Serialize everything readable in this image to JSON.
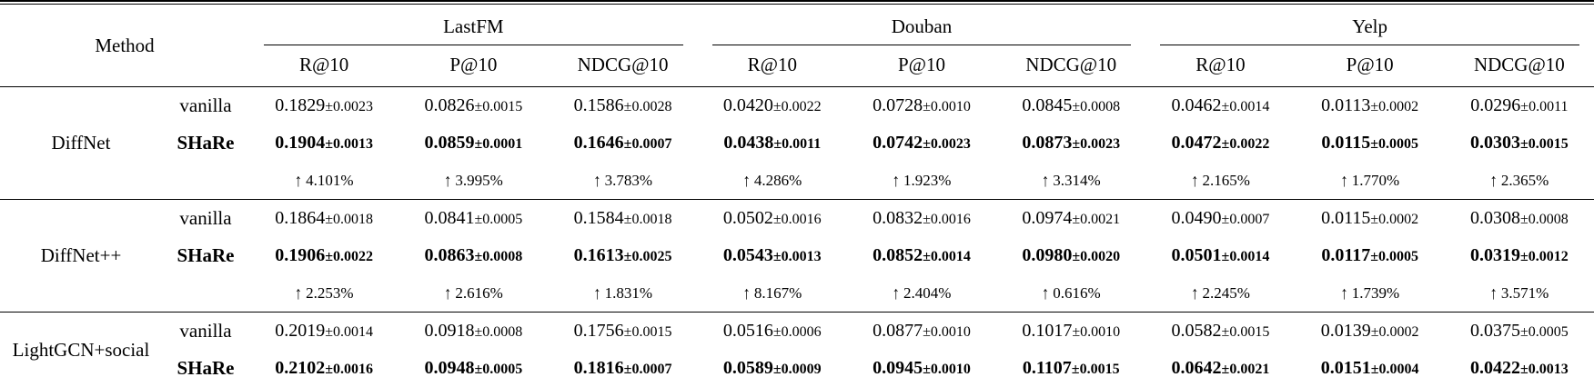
{
  "colors": {
    "text": "#000000",
    "background": "#ffffff"
  },
  "table": {
    "method_header": "Method",
    "datasets": [
      "LastFM",
      "Douban",
      "Yelp"
    ],
    "metrics": [
      "R@10",
      "P@10",
      "NDCG@10"
    ],
    "variant_labels": {
      "vanilla": "vanilla",
      "share": "SHaRe"
    },
    "pm_sign": "±",
    "improve_arrow": "↑",
    "methods": [
      {
        "name": "DiffNet",
        "vanilla": [
          [
            "0.1829",
            "0.0023"
          ],
          [
            "0.0826",
            "0.0015"
          ],
          [
            "0.1586",
            "0.0028"
          ],
          [
            "0.0420",
            "0.0022"
          ],
          [
            "0.0728",
            "0.0010"
          ],
          [
            "0.0845",
            "0.0008"
          ],
          [
            "0.0462",
            "0.0014"
          ],
          [
            "0.0113",
            "0.0002"
          ],
          [
            "0.0296",
            "0.0011"
          ]
        ],
        "share": [
          [
            "0.1904",
            "0.0013"
          ],
          [
            "0.0859",
            "0.0001"
          ],
          [
            "0.1646",
            "0.0007"
          ],
          [
            "0.0438",
            "0.0011"
          ],
          [
            "0.0742",
            "0.0023"
          ],
          [
            "0.0873",
            "0.0023"
          ],
          [
            "0.0472",
            "0.0022"
          ],
          [
            "0.0115",
            "0.0005"
          ],
          [
            "0.0303",
            "0.0015"
          ]
        ],
        "improve": [
          "4.101%",
          "3.995%",
          "3.783%",
          "4.286%",
          "1.923%",
          "3.314%",
          "2.165%",
          "1.770%",
          "2.365%"
        ]
      },
      {
        "name": "DiffNet++",
        "vanilla": [
          [
            "0.1864",
            "0.0018"
          ],
          [
            "0.0841",
            "0.0005"
          ],
          [
            "0.1584",
            "0.0018"
          ],
          [
            "0.0502",
            "0.0016"
          ],
          [
            "0.0832",
            "0.0016"
          ],
          [
            "0.0974",
            "0.0021"
          ],
          [
            "0.0490",
            "0.0007"
          ],
          [
            "0.0115",
            "0.0002"
          ],
          [
            "0.0308",
            "0.0008"
          ]
        ],
        "share": [
          [
            "0.1906",
            "0.0022"
          ],
          [
            "0.0863",
            "0.0008"
          ],
          [
            "0.1613",
            "0.0025"
          ],
          [
            "0.0543",
            "0.0013"
          ],
          [
            "0.0852",
            "0.0014"
          ],
          [
            "0.0980",
            "0.0020"
          ],
          [
            "0.0501",
            "0.0014"
          ],
          [
            "0.0117",
            "0.0005"
          ],
          [
            "0.0319",
            "0.0012"
          ]
        ],
        "improve": [
          "2.253%",
          "2.616%",
          "1.831%",
          "8.167%",
          "2.404%",
          "0.616%",
          "2.245%",
          "1.739%",
          "3.571%"
        ]
      },
      {
        "name": "LightGCN+social",
        "vanilla": [
          [
            "0.2019",
            "0.0014"
          ],
          [
            "0.0918",
            "0.0008"
          ],
          [
            "0.1756",
            "0.0015"
          ],
          [
            "0.0516",
            "0.0006"
          ],
          [
            "0.0877",
            "0.0010"
          ],
          [
            "0.1017",
            "0.0010"
          ],
          [
            "0.0582",
            "0.0015"
          ],
          [
            "0.0139",
            "0.0002"
          ],
          [
            "0.0375",
            "0.0005"
          ]
        ],
        "share": [
          [
            "0.2102",
            "0.0016"
          ],
          [
            "0.0948",
            "0.0005"
          ],
          [
            "0.1816",
            "0.0007"
          ],
          [
            "0.0589",
            "0.0009"
          ],
          [
            "0.0945",
            "0.0010"
          ],
          [
            "0.1107",
            "0.0015"
          ],
          [
            "0.0642",
            "0.0021"
          ],
          [
            "0.0151",
            "0.0004"
          ],
          [
            "0.0422",
            "0.0013"
          ]
        ],
        "improve": null
      }
    ]
  }
}
